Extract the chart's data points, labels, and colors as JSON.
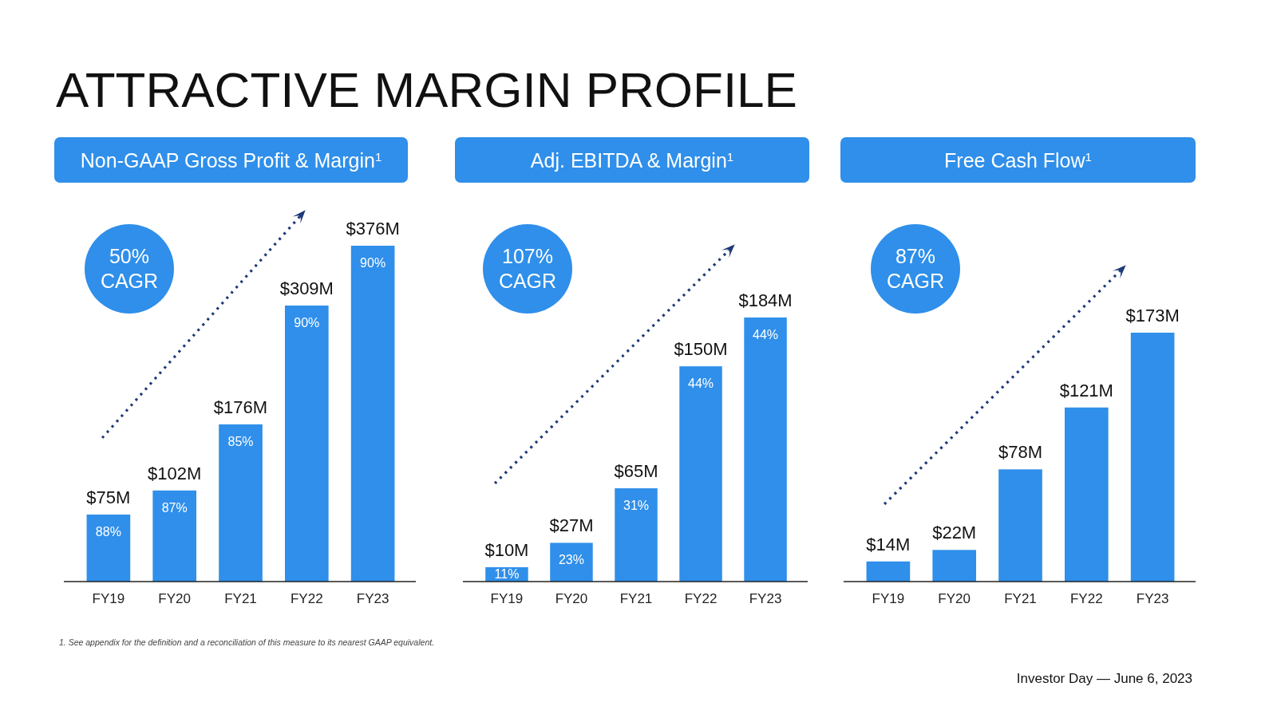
{
  "chart_data": [
    {
      "type": "bar",
      "title": "Non-GAAP Gross Profit & Margin$^{1}$",
      "categories": [
        "FY19",
        "FY20",
        "FY21",
        "FY22",
        "FY23"
      ],
      "values": [
        75,
        102,
        176,
        309,
        376
      ],
      "value_labels": [
        "$75M",
        "$102M",
        "$176M",
        "$309M",
        "$376M"
      ],
      "color": "#2f8fea",
      "annotations": [
        "50% CAGR",
        "88%",
        "87%",
        "85%",
        "90%",
        "90%"
      ]
    },
    {
      "type": "bar",
      "title": "Adj. EBITDA & Margin$^{1}$",
      "categories": [
        "FY19",
        "FY20",
        "FY21",
        "FY22",
        "FY23"
      ],
      "values": [
        10,
        27,
        65,
        150,
        184
      ],
      "value_labels": [
        "$10M",
        "$27M",
        "$65M",
        "$150M",
        "$184M"
      ],
      "color": "#2f8fea",
      "annotations": [
        "107% CAGR",
        "11%",
        "23%",
        "31%",
        "44%",
        "44%"
      ]
    },
    {
      "type": "bar",
      "title": "Free Cash Flow$^{1}$",
      "categories": [
        "FY19",
        "FY20",
        "FY21",
        "FY22",
        "FY23"
      ],
      "values": [
        14,
        22,
        78,
        121,
        173
      ],
      "value_labels": [
        "$14M",
        "$22M",
        "$78M",
        "$121M",
        "$173M"
      ],
      "color": "#2f8fea",
      "annotations": [
        "87% CAGR"
      ]
    },
    {
      "type": "other",
      "title": "ATTRACTIVE MARGIN PROFILE",
      "annotations": [
        "1. See appendix for the definition and a reconciliation of this measure to its nearest GAAP equivalent.",
        "Investor Day — June 6, 2023"
      ]
    }
  ]
}
